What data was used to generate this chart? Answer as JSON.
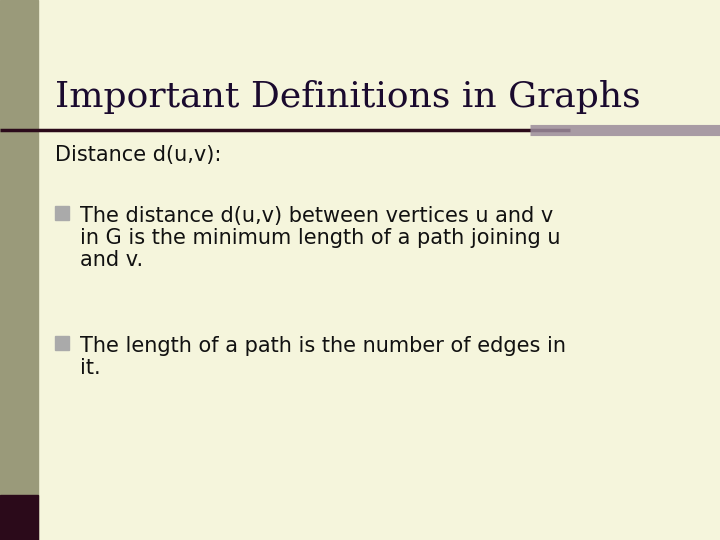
{
  "bg_color": "#f5f5dc",
  "left_bar_color": "#9a9a7a",
  "title": "Important Definitions in Graphs",
  "title_color": "#1a0a2e",
  "title_fontsize": 26,
  "subtitle": "Distance d(u,v):",
  "subtitle_fontsize": 15,
  "subtitle_color": "#111111",
  "bullet_color": "#aaaaaa",
  "bullet1_line1": "The distance d(u,v) between vertices u and v",
  "bullet1_line2": "in G is the minimum length of a path joining u",
  "bullet1_line3": "and v.",
  "bullet2_line1": "The length of a path is the number of edges in",
  "bullet2_line2": "it.",
  "body_fontsize": 15,
  "body_color": "#111111",
  "underline_dark": "#2b0a1a",
  "underline_light": "#9b8b9b",
  "left_dark_bar_color": "#2b0a1a"
}
